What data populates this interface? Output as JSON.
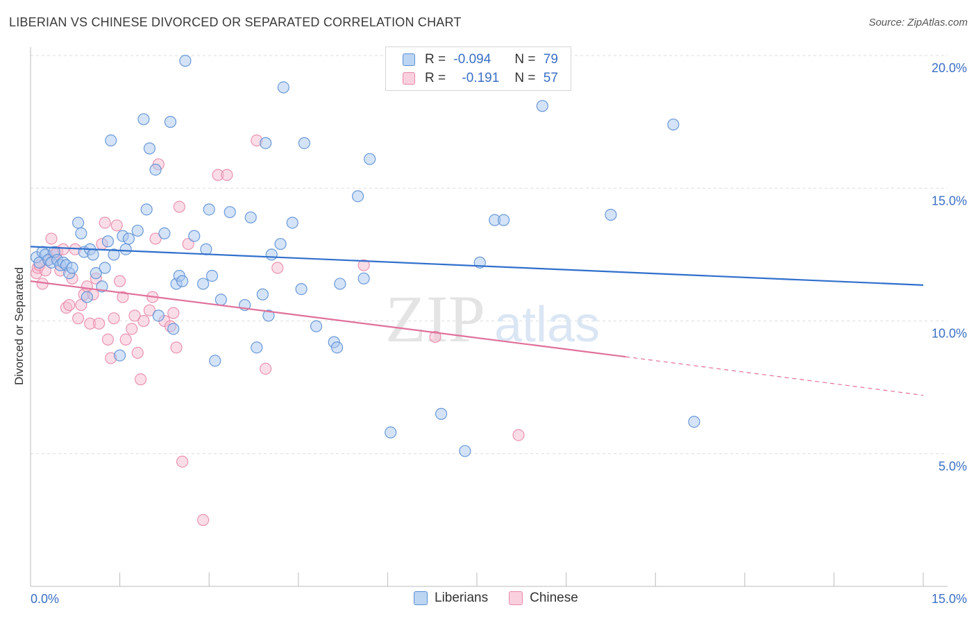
{
  "header": {
    "title": "LIBERIAN VS CHINESE DIVORCED OR SEPARATED CORRELATION CHART",
    "source": "Source: ZipAtlas.com"
  },
  "watermark": {
    "zip": "ZIP",
    "atlas": "atlas"
  },
  "legend": {
    "rows": [
      {
        "r_label": "R =",
        "r_value": "-0.094",
        "n_label": "N =",
        "n_value": "79"
      },
      {
        "r_label": "R =",
        "r_value": "-0.191",
        "n_label": "N =",
        "n_value": "57"
      }
    ]
  },
  "bottom_legend": {
    "liberians": "Liberians",
    "chinese": "Chinese"
  },
  "colors": {
    "liberians_fill": "#a9c8f0",
    "liberians_stroke": "#5b8fd4",
    "liberians_line": "#2f6fcc",
    "chinese_fill": "#f7bcd0",
    "chinese_stroke": "#e888a8",
    "chinese_line": "#e0709a",
    "tick_label": "#3a6fc4",
    "grid": "#dcdcdc"
  },
  "chart_data": {
    "type": "scatter",
    "title": "LIBERIAN VS CHINESE DIVORCED OR SEPARATED CORRELATION CHART",
    "xlabel": "",
    "ylabel": "Divorced or Separated",
    "xlim": [
      0,
      15
    ],
    "ylim": [
      0,
      20.5
    ],
    "x_tick_labels": [
      "0.0%",
      "15.0%"
    ],
    "y_ticks": [
      5,
      10,
      15,
      20
    ],
    "y_tick_labels": [
      "5.0%",
      "10.0%",
      "15.0%",
      "20.0%"
    ],
    "grid": true,
    "legend_position": "top-center",
    "series": [
      {
        "name": "Liberians",
        "r": -0.094,
        "n": 79,
        "trend": {
          "x": [
            0,
            15
          ],
          "y": [
            12.8,
            11.35
          ]
        },
        "points": [
          [
            0.1,
            12.4
          ],
          [
            0.15,
            12.2
          ],
          [
            0.2,
            12.6
          ],
          [
            0.25,
            12.5
          ],
          [
            0.3,
            12.3
          ],
          [
            0.35,
            12.2
          ],
          [
            0.4,
            12.6
          ],
          [
            0.45,
            12.3
          ],
          [
            0.5,
            12.1
          ],
          [
            0.55,
            12.2
          ],
          [
            0.6,
            12.1
          ],
          [
            0.65,
            11.8
          ],
          [
            0.7,
            12.0
          ],
          [
            0.8,
            13.7
          ],
          [
            0.85,
            13.3
          ],
          [
            0.9,
            12.6
          ],
          [
            0.95,
            10.9
          ],
          [
            1.0,
            12.7
          ],
          [
            1.05,
            12.5
          ],
          [
            1.1,
            11.8
          ],
          [
            1.2,
            11.3
          ],
          [
            1.25,
            12.0
          ],
          [
            1.3,
            13.0
          ],
          [
            1.35,
            16.8
          ],
          [
            1.4,
            12.5
          ],
          [
            1.5,
            8.7
          ],
          [
            1.55,
            13.2
          ],
          [
            1.6,
            12.7
          ],
          [
            1.65,
            13.1
          ],
          [
            1.8,
            13.4
          ],
          [
            1.9,
            17.6
          ],
          [
            1.95,
            14.2
          ],
          [
            2.0,
            16.5
          ],
          [
            2.1,
            15.7
          ],
          [
            2.15,
            10.2
          ],
          [
            2.25,
            13.3
          ],
          [
            2.35,
            17.5
          ],
          [
            2.4,
            9.7
          ],
          [
            2.45,
            11.4
          ],
          [
            2.5,
            11.7
          ],
          [
            2.55,
            11.5
          ],
          [
            2.6,
            19.8
          ],
          [
            2.75,
            13.2
          ],
          [
            2.9,
            11.4
          ],
          [
            2.95,
            12.7
          ],
          [
            3.0,
            14.2
          ],
          [
            3.05,
            11.7
          ],
          [
            3.1,
            8.5
          ],
          [
            3.2,
            10.8
          ],
          [
            3.35,
            14.1
          ],
          [
            3.6,
            10.6
          ],
          [
            3.7,
            13.9
          ],
          [
            3.8,
            9.0
          ],
          [
            3.9,
            11.0
          ],
          [
            3.95,
            16.7
          ],
          [
            4.0,
            10.2
          ],
          [
            4.05,
            12.5
          ],
          [
            4.2,
            12.9
          ],
          [
            4.25,
            18.8
          ],
          [
            4.4,
            13.7
          ],
          [
            4.55,
            11.2
          ],
          [
            4.6,
            16.7
          ],
          [
            4.8,
            9.8
          ],
          [
            5.1,
            9.2
          ],
          [
            5.15,
            9.0
          ],
          [
            5.2,
            11.4
          ],
          [
            5.5,
            14.7
          ],
          [
            5.6,
            11.6
          ],
          [
            5.7,
            16.1
          ],
          [
            6.05,
            5.8
          ],
          [
            6.9,
            6.5
          ],
          [
            7.3,
            5.1
          ],
          [
            7.55,
            12.2
          ],
          [
            7.8,
            13.8
          ],
          [
            7.95,
            13.8
          ],
          [
            8.6,
            18.1
          ],
          [
            9.75,
            14.0
          ],
          [
            10.8,
            17.4
          ],
          [
            11.15,
            6.2
          ]
        ]
      },
      {
        "name": "Chinese",
        "r": -0.191,
        "n": 57,
        "trend": {
          "x": [
            0,
            10
          ],
          "y": [
            11.5,
            8.65
          ]
        },
        "trend_dashed": {
          "x": [
            10,
            15
          ],
          "y": [
            8.65,
            7.2
          ]
        },
        "points": [
          [
            0.1,
            11.8
          ],
          [
            0.12,
            12.0
          ],
          [
            0.15,
            12.1
          ],
          [
            0.2,
            11.4
          ],
          [
            0.25,
            11.9
          ],
          [
            0.3,
            12.3
          ],
          [
            0.35,
            13.1
          ],
          [
            0.4,
            12.5
          ],
          [
            0.45,
            12.6
          ],
          [
            0.5,
            11.9
          ],
          [
            0.55,
            12.7
          ],
          [
            0.6,
            10.5
          ],
          [
            0.65,
            10.6
          ],
          [
            0.7,
            11.6
          ],
          [
            0.75,
            12.7
          ],
          [
            0.8,
            10.1
          ],
          [
            0.85,
            10.6
          ],
          [
            0.9,
            11.0
          ],
          [
            0.95,
            11.3
          ],
          [
            1.0,
            9.9
          ],
          [
            1.05,
            11.0
          ],
          [
            1.1,
            11.6
          ],
          [
            1.15,
            9.9
          ],
          [
            1.2,
            12.9
          ],
          [
            1.25,
            13.7
          ],
          [
            1.3,
            9.3
          ],
          [
            1.35,
            8.6
          ],
          [
            1.4,
            10.1
          ],
          [
            1.45,
            13.6
          ],
          [
            1.5,
            11.5
          ],
          [
            1.55,
            10.9
          ],
          [
            1.6,
            9.3
          ],
          [
            1.7,
            9.7
          ],
          [
            1.75,
            10.2
          ],
          [
            1.8,
            8.8
          ],
          [
            1.85,
            7.8
          ],
          [
            1.9,
            10.0
          ],
          [
            2.0,
            10.4
          ],
          [
            2.05,
            10.9
          ],
          [
            2.1,
            13.1
          ],
          [
            2.15,
            15.9
          ],
          [
            2.25,
            10.0
          ],
          [
            2.35,
            9.8
          ],
          [
            2.4,
            10.3
          ],
          [
            2.45,
            9.0
          ],
          [
            2.5,
            14.3
          ],
          [
            2.55,
            4.7
          ],
          [
            2.65,
            12.9
          ],
          [
            2.9,
            2.5
          ],
          [
            3.15,
            15.5
          ],
          [
            3.3,
            15.5
          ],
          [
            3.8,
            16.8
          ],
          [
            3.95,
            8.2
          ],
          [
            4.15,
            12.0
          ],
          [
            5.6,
            12.1
          ],
          [
            6.8,
            9.4
          ],
          [
            8.2,
            5.7
          ]
        ]
      }
    ]
  }
}
